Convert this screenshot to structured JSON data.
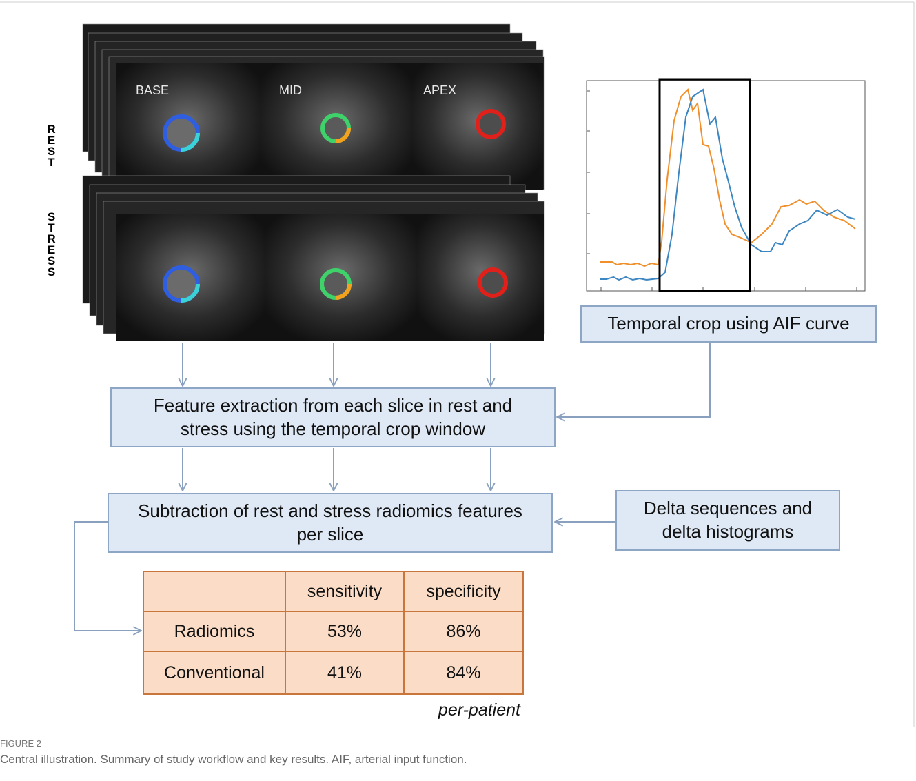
{
  "images": {
    "rest_label": "REST",
    "stress_label": "STRESS",
    "slices": [
      "BASE",
      "MID",
      "APEX"
    ]
  },
  "steps": {
    "temporal_crop": "Temporal crop using AIF curve",
    "feature_extraction": "Feature extraction from each slice in rest and stress using the temporal crop window",
    "subtraction": "Subtraction of rest and stress radiomics features per slice",
    "delta": "Delta sequences and delta histograms"
  },
  "table": {
    "header": [
      "sensitivity",
      "specificity"
    ],
    "rows": [
      [
        "Radiomics",
        "53%",
        "86%"
      ],
      [
        "Conventional",
        "41%",
        "84%"
      ]
    ],
    "note": "per-patient"
  },
  "caption": {
    "label": "FIGURE 2",
    "text": "Central illustration. Summary of study workflow and key results. AIF, arterial input function."
  }
}
